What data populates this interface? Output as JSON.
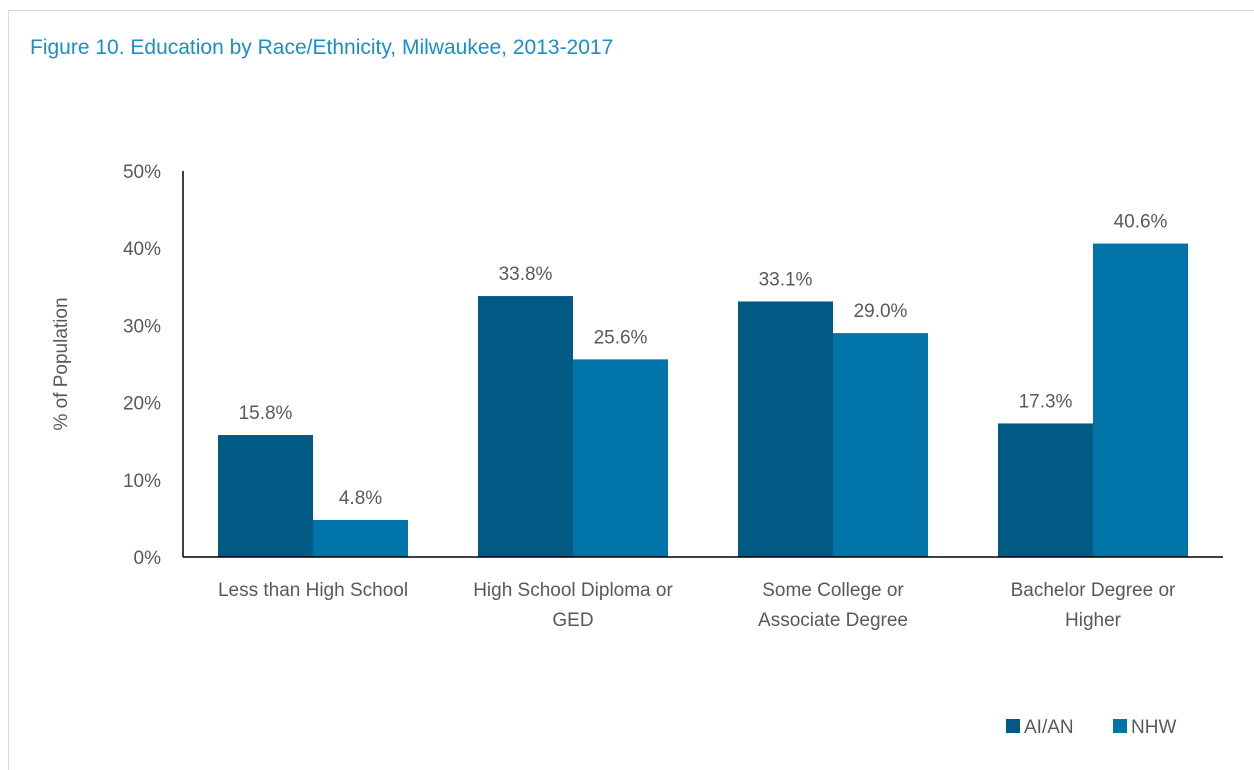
{
  "figure_title": "Figure 10. Education by Race/Ethnicity, Milwaukee, 2013-2017",
  "colors": {
    "title": "#1a8fc7",
    "series_1": "#005a84",
    "series_2": "#0074a8",
    "text": "#595959",
    "axis": "#000000"
  },
  "chart_data": {
    "type": "bar",
    "title": "Figure 10. Education by Race/Ethnicity, Milwaukee, 2013-2017",
    "ylabel": "% of Population",
    "xlabel": "",
    "ylim": [
      0,
      50
    ],
    "yticks": [
      0,
      10,
      20,
      30,
      40,
      50
    ],
    "ytick_labels": [
      "0%",
      "10%",
      "20%",
      "30%",
      "40%",
      "50%"
    ],
    "categories": [
      [
        "Less than High School"
      ],
      [
        "High School Diploma or",
        "GED"
      ],
      [
        "Some College or",
        "Associate Degree"
      ],
      [
        "Bachelor Degree or",
        "Higher"
      ]
    ],
    "series": [
      {
        "name": "AI/AN",
        "color": "#005a84",
        "values": [
          15.8,
          33.8,
          33.1,
          17.3
        ],
        "labels": [
          "15.8%",
          "33.8%",
          "33.1%",
          "17.3%"
        ]
      },
      {
        "name": "NHW",
        "color": "#0074a8",
        "values": [
          4.8,
          25.6,
          29.0,
          40.6
        ],
        "labels": [
          "4.8%",
          "25.6%",
          "29.0%",
          "40.6%"
        ]
      }
    ],
    "legend": "bottom-right",
    "grid": false
  }
}
